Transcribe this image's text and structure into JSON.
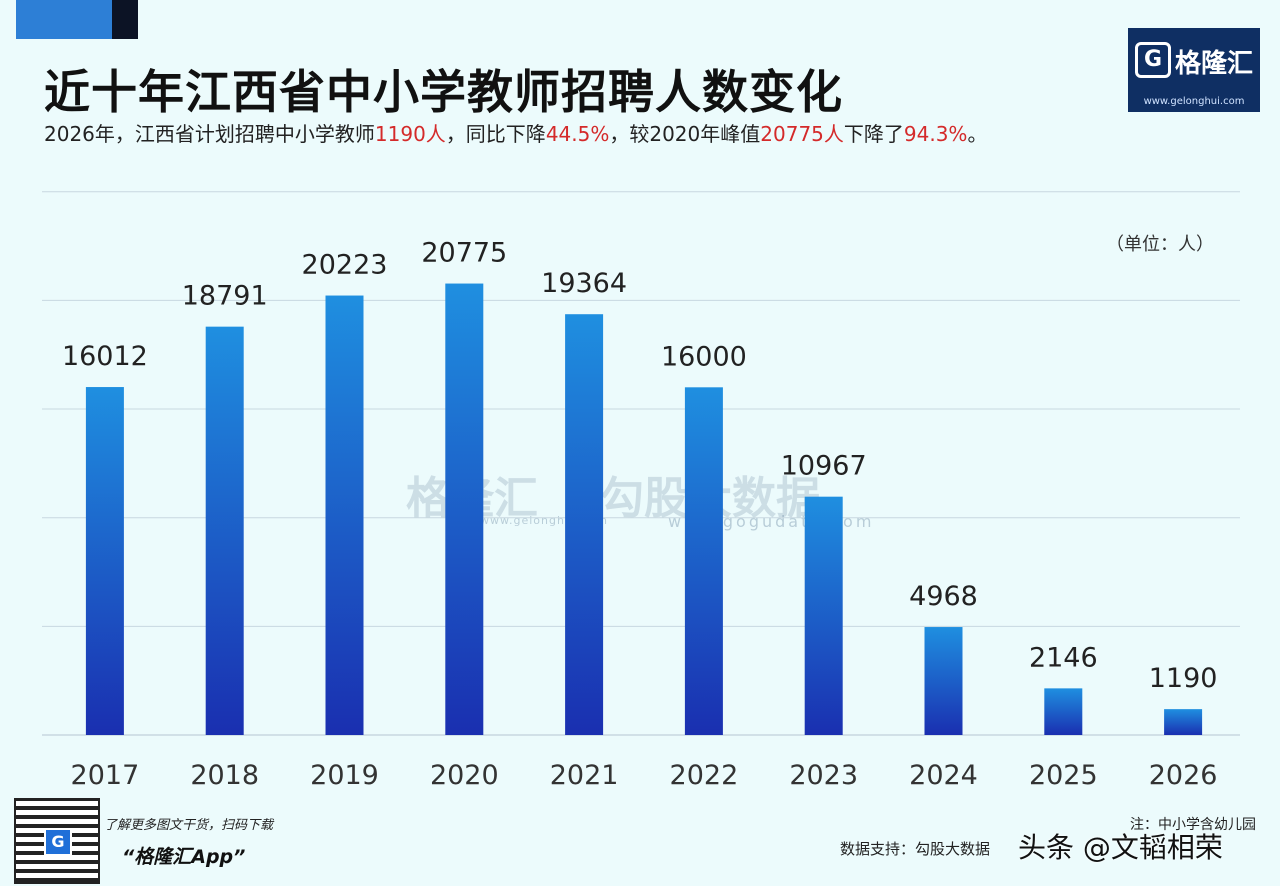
{
  "title": "近十年江西省中小学教师招聘人数变化",
  "subtitle": {
    "p1": "2026年，江西省计划招聘中小学教师",
    "h1": "1190人",
    "p2": "，同比下降",
    "h2": "44.5%",
    "p3": "，较2020年峰值",
    "h3": "20775人",
    "p4": "下降了",
    "h4": "94.3%",
    "p5": "。"
  },
  "logo": {
    "mark": "G",
    "name": "格隆汇",
    "url": "www.gelonghui.com"
  },
  "unit": "（单位：人）",
  "watermark": {
    "brand": "格隆汇",
    "brand_url": "www.gelonghui.com",
    "partner": "勾股大数据",
    "partner_url": "www.gogudata.com"
  },
  "footer": {
    "download": "了解更多图文干货，扫码下载",
    "app": "“格隆汇App”",
    "note": "注：中小学含幼儿园",
    "source": "数据支持：勾股大数据",
    "toutiao": "头条 @文韬相荣"
  },
  "colors": {
    "bar_top": "#1f8fe0",
    "bar_bottom": "#1a2fb0",
    "highlight": "#d42a2a",
    "grid": "#c8d8e0"
  },
  "chart_data": {
    "type": "bar",
    "title": "近十年江西省中小学教师招聘人数变化",
    "xlabel": "",
    "ylabel": "人",
    "categories": [
      "2017",
      "2018",
      "2019",
      "2020",
      "2021",
      "2022",
      "2023",
      "2024",
      "2025",
      "2026"
    ],
    "values": [
      16012,
      18791,
      20223,
      20775,
      19364,
      16000,
      10967,
      4968,
      2146,
      1190
    ],
    "ylim": [
      0,
      26000
    ],
    "grid": true
  }
}
